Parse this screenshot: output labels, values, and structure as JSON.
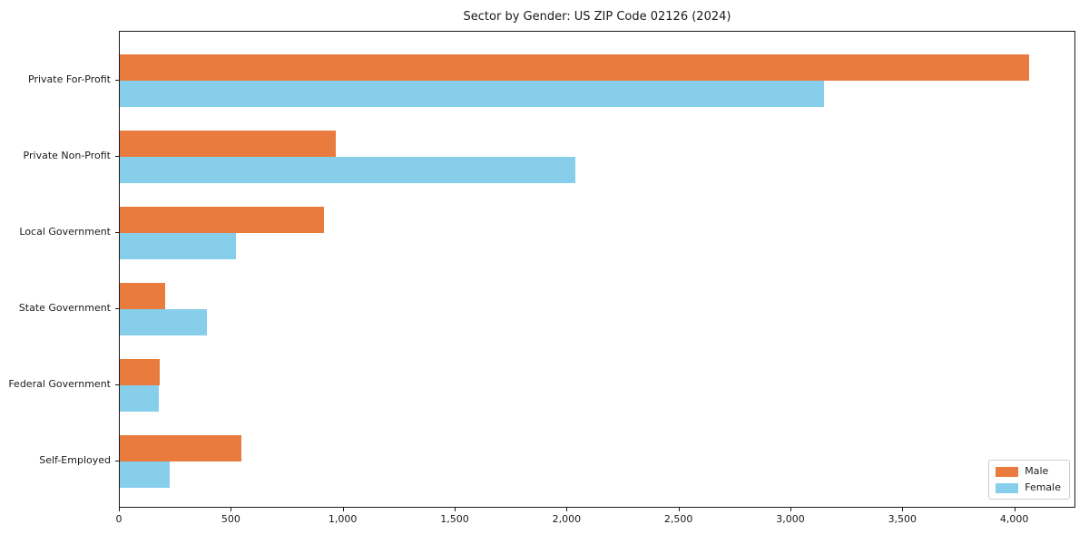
{
  "chart_data": {
    "type": "bar",
    "orientation": "horizontal",
    "title": "Sector by Gender: US ZIP Code 02126 (2024)",
    "categories": [
      "Private For-Profit",
      "Private Non-Profit",
      "Local Government",
      "State Government",
      "Federal Government",
      "Self-Employed"
    ],
    "series": [
      {
        "name": "Male",
        "color": "#e87b3d",
        "values": [
          4070,
          965,
          915,
          205,
          180,
          545
        ]
      },
      {
        "name": "Female",
        "color": "#87ceeb",
        "values": [
          3150,
          2040,
          520,
          390,
          175,
          225
        ]
      }
    ],
    "xlabel": "",
    "ylabel": "",
    "xlim": [
      0,
      4273
    ],
    "xticks": [
      0,
      500,
      1000,
      1500,
      2000,
      2500,
      3000,
      3500,
      4000
    ],
    "xtick_labels": [
      "0",
      "500",
      "1,000",
      "1,500",
      "2,000",
      "2,500",
      "3,000",
      "3,500",
      "4,000"
    ],
    "grid": false,
    "legend": {
      "position": "lower right"
    }
  }
}
